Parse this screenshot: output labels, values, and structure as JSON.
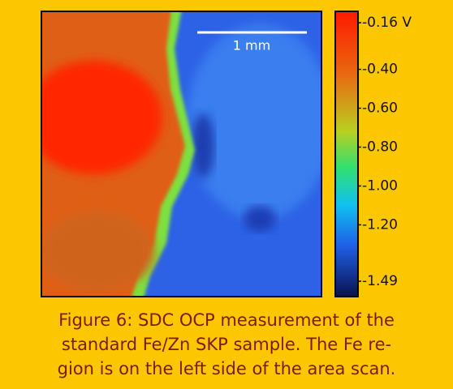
{
  "chart_data": {
    "type": "heatmap",
    "scale_bar_label": "1 mm",
    "clim": [
      -1.49,
      -0.16
    ],
    "cticks": [
      {
        "value": -0.16,
        "label": "-0.16 V"
      },
      {
        "value": -0.4,
        "label": "-0.40"
      },
      {
        "value": -0.6,
        "label": "-0.60"
      },
      {
        "value": -0.8,
        "label": "-0.80"
      },
      {
        "value": -1.0,
        "label": "-1.00"
      },
      {
        "value": -1.2,
        "label": "-1.20"
      },
      {
        "value": -1.49,
        "label": "-1.49"
      }
    ],
    "caption": [
      "Figure 6: SDC OCP measurement of the",
      "standard Fe/Zn SKP sample. The Fe re-",
      "gion is on the left side of the area scan."
    ]
  }
}
